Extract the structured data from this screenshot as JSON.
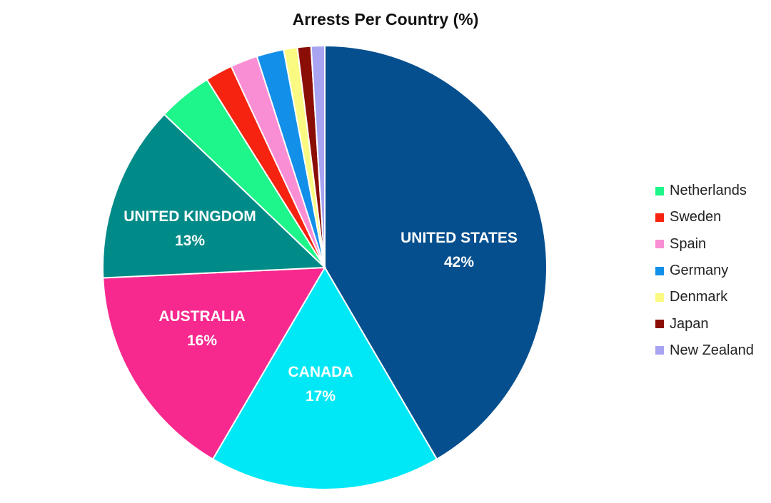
{
  "chart_data": {
    "type": "pie",
    "title": "Arrests Per Country (%)",
    "slices": [
      {
        "name": "United States",
        "value": 42,
        "label": "UNITED STATES",
        "value_label": "42%",
        "color": "#054F8E",
        "in_legend": false
      },
      {
        "name": "Canada",
        "value": 17,
        "label": "CANADA",
        "value_label": "17%",
        "color": "#00E8F5",
        "in_legend": false
      },
      {
        "name": "Australia",
        "value": 16,
        "label": "AUSTRALIA",
        "value_label": "16%",
        "color": "#F7298E",
        "in_legend": false
      },
      {
        "name": "United Kingdom",
        "value": 13,
        "label": "UNITED KINGDOM",
        "value_label": "13%",
        "color": "#008A88",
        "in_legend": false
      },
      {
        "name": "Netherlands",
        "value": 4,
        "label": "Netherlands",
        "value_label": "",
        "color": "#1EF58A",
        "in_legend": true
      },
      {
        "name": "Sweden",
        "value": 2,
        "label": "Sweden",
        "value_label": "",
        "color": "#F5230F",
        "in_legend": true
      },
      {
        "name": "Spain",
        "value": 2,
        "label": "Spain",
        "value_label": "",
        "color": "#F98ED5",
        "in_legend": true
      },
      {
        "name": "Germany",
        "value": 2,
        "label": "Germany",
        "value_label": "",
        "color": "#128FE9",
        "in_legend": true
      },
      {
        "name": "Denmark",
        "value": 1,
        "label": "Denmark",
        "value_label": "",
        "color": "#FAFA82",
        "in_legend": true
      },
      {
        "name": "Japan",
        "value": 1,
        "label": "Japan",
        "value_label": "",
        "color": "#8B0E06",
        "in_legend": true
      },
      {
        "name": "New Zealand",
        "value": 1,
        "label": "New Zealand",
        "value_label": "",
        "color": "#A8A4F2",
        "in_legend": true
      }
    ],
    "start_direction": "top",
    "direction": "clockwise",
    "legend_position": "right"
  }
}
